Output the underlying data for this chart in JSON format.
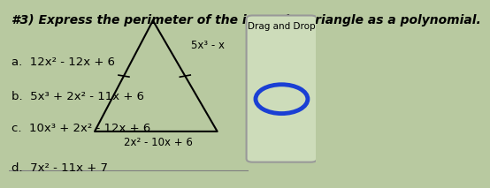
{
  "title": "#3) Express the perimeter of the isosceles triangle as a polynomial.",
  "background_color": "#b8c9a0",
  "answer_choices": [
    "a.  12x² - 12x + 6",
    "b.  5x³ + 2x² - 11x + 6",
    "c.  10x³ + 2x² - 12x + 6",
    "d.  7x² - 11x + 7"
  ],
  "triangle_apex": [
    0.47,
    0.93
  ],
  "triangle_bl": [
    0.28,
    0.28
  ],
  "triangle_br": [
    0.68,
    0.28
  ],
  "side_label_top": "5x³ - x",
  "side_label_bottom": "2x² - 10x + 6",
  "drag_drop_text": "Drag and Drop",
  "circle_color": "#1a3fd4",
  "title_fontsize": 10.0,
  "answer_fontsize": 9.5
}
